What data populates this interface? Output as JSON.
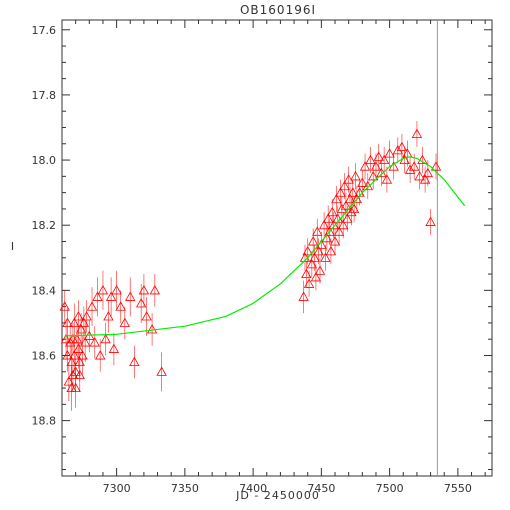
{
  "chart_data": {
    "type": "scatter",
    "title": "OB160196I",
    "xlabel": "JD - 2450000",
    "ylabel": "I",
    "xlim": [
      7260,
      7575
    ],
    "ylim": [
      18.97,
      17.57
    ],
    "y_inverted": true,
    "xticks": [
      "7300",
      "7350",
      "7400",
      "7450",
      "7500",
      "7550"
    ],
    "yticks": [
      "17.6",
      "17.8",
      "18.0",
      "18.2",
      "18.4",
      "18.6",
      "18.8"
    ],
    "grid": false,
    "vertical_line_x": 7535,
    "colors": {
      "points": "#ff0000",
      "model": "#00ee00",
      "vline": "#999999",
      "axes": "#333333"
    },
    "series": [
      {
        "kind": "points",
        "marker": "open-triangle",
        "x": [
          7262,
          7263,
          7264,
          7264,
          7265,
          7266,
          7267,
          7267,
          7268,
          7268,
          7269,
          7269,
          7270,
          7270,
          7271,
          7272,
          7272,
          7273,
          7273,
          7274,
          7275,
          7276,
          7277,
          7278,
          7280,
          7282,
          7284,
          7286,
          7288,
          7290,
          7292,
          7294,
          7296,
          7298,
          7300,
          7303,
          7306,
          7310,
          7313,
          7318,
          7320,
          7322,
          7326,
          7328,
          7333,
          7437,
          7438,
          7439,
          7440,
          7441,
          7443,
          7444,
          7445,
          7446,
          7447,
          7448,
          7449,
          7450,
          7452,
          7453,
          7454,
          7455,
          7456,
          7457,
          7458,
          7459,
          7460,
          7461,
          7462,
          7463,
          7464,
          7465,
          7466,
          7467,
          7468,
          7469,
          7470,
          7471,
          7472,
          7473,
          7474,
          7475,
          7476,
          7478,
          7480,
          7482,
          7484,
          7486,
          7488,
          7490,
          7492,
          7494,
          7496,
          7498,
          7500,
          7503,
          7506,
          7509,
          7511,
          7513,
          7515,
          7518,
          7520,
          7522,
          7524,
          7526,
          7528,
          7530,
          7534
        ],
        "y": [
          18.45,
          18.55,
          18.6,
          18.5,
          18.68,
          18.56,
          18.7,
          18.62,
          18.55,
          18.66,
          18.5,
          18.6,
          18.65,
          18.7,
          18.55,
          18.58,
          18.48,
          18.62,
          18.66,
          18.52,
          18.6,
          18.5,
          18.56,
          18.48,
          18.54,
          18.45,
          18.56,
          18.42,
          18.6,
          18.4,
          18.55,
          18.48,
          18.42,
          18.58,
          18.4,
          18.45,
          18.5,
          18.42,
          18.62,
          18.44,
          18.4,
          18.48,
          18.52,
          18.4,
          18.65,
          18.42,
          18.3,
          18.35,
          18.28,
          18.38,
          18.32,
          18.25,
          18.3,
          18.36,
          18.22,
          18.28,
          18.34,
          18.26,
          18.2,
          18.3,
          18.24,
          18.18,
          18.22,
          18.28,
          18.16,
          18.2,
          18.25,
          18.12,
          18.18,
          18.22,
          18.1,
          18.15,
          18.2,
          18.08,
          18.14,
          18.18,
          18.06,
          18.12,
          18.16,
          18.1,
          18.15,
          18.05,
          18.12,
          18.1,
          18.07,
          18.02,
          18.08,
          18.0,
          18.05,
          18.02,
          17.99,
          18.04,
          18.0,
          18.06,
          17.98,
          18.02,
          17.97,
          17.96,
          18.0,
          17.98,
          18.03,
          18.02,
          17.92,
          18.05,
          18.0,
          18.06,
          18.04,
          18.19,
          18.02
        ],
        "err": [
          0.05,
          0.06,
          0.05,
          0.05,
          0.06,
          0.05,
          0.07,
          0.06,
          0.05,
          0.05,
          0.06,
          0.05,
          0.05,
          0.06,
          0.05,
          0.06,
          0.05,
          0.06,
          0.05,
          0.05,
          0.06,
          0.05,
          0.06,
          0.05,
          0.05,
          0.06,
          0.05,
          0.06,
          0.05,
          0.06,
          0.05,
          0.05,
          0.06,
          0.05,
          0.06,
          0.05,
          0.05,
          0.06,
          0.05,
          0.06,
          0.05,
          0.06,
          0.05,
          0.05,
          0.06,
          0.05,
          0.04,
          0.04,
          0.04,
          0.04,
          0.04,
          0.04,
          0.04,
          0.04,
          0.04,
          0.04,
          0.04,
          0.04,
          0.04,
          0.04,
          0.04,
          0.04,
          0.04,
          0.04,
          0.04,
          0.04,
          0.04,
          0.04,
          0.04,
          0.04,
          0.04,
          0.04,
          0.04,
          0.04,
          0.04,
          0.04,
          0.04,
          0.04,
          0.04,
          0.04,
          0.04,
          0.04,
          0.04,
          0.04,
          0.04,
          0.04,
          0.04,
          0.04,
          0.04,
          0.04,
          0.04,
          0.04,
          0.04,
          0.04,
          0.04,
          0.04,
          0.04,
          0.04,
          0.04,
          0.04,
          0.04,
          0.04,
          0.04,
          0.04,
          0.04,
          0.04,
          0.04,
          0.04,
          0.04
        ]
      },
      {
        "kind": "model",
        "x": [
          7262,
          7300,
          7350,
          7380,
          7400,
          7420,
          7440,
          7460,
          7480,
          7500,
          7510,
          7515,
          7520,
          7530,
          7540,
          7555
        ],
        "y": [
          18.54,
          18.535,
          18.51,
          18.48,
          18.44,
          18.38,
          18.3,
          18.2,
          18.1,
          18.02,
          17.995,
          17.99,
          17.995,
          18.02,
          18.06,
          18.14
        ]
      }
    ]
  }
}
